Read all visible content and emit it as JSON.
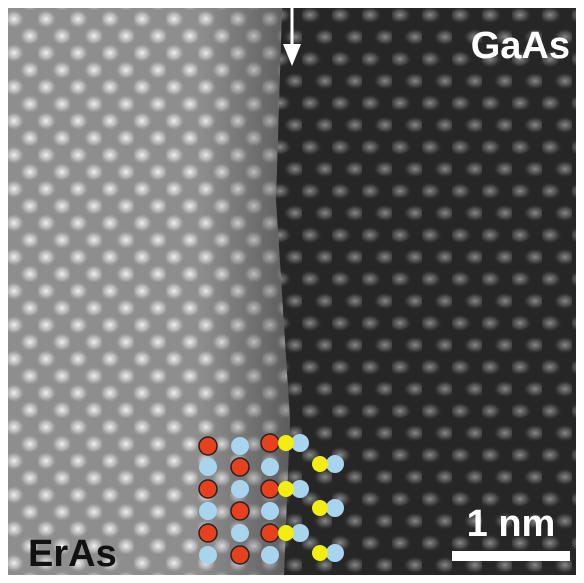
{
  "labels": {
    "upper_right": "GaAs",
    "lower_left": "ErAs"
  },
  "scale_bar": {
    "label": "1 nm"
  }
}
